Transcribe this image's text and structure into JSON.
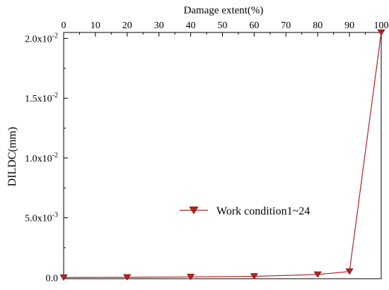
{
  "chart_data": {
    "type": "line",
    "title": "",
    "xlabel": "Damage extent(%)",
    "ylabel": "DILDC(mm)",
    "x_ticks": [
      0,
      10,
      20,
      30,
      40,
      50,
      60,
      70,
      80,
      90,
      100
    ],
    "y_ticks": [
      {
        "value": 0,
        "label": "0.0"
      },
      {
        "value": 0.005,
        "label": "5.0x10",
        "exp": "-3"
      },
      {
        "value": 0.01,
        "label": "1.0x10",
        "exp": "-2"
      },
      {
        "value": 0.015,
        "label": "1.5x10",
        "exp": "-2"
      },
      {
        "value": 0.02,
        "label": "2.0x10",
        "exp": "-2"
      }
    ],
    "xlim": [
      0,
      100
    ],
    "ylim": [
      -0.0001,
      0.0205
    ],
    "grid": false,
    "legend_position": "center-right",
    "series": [
      {
        "name": "Work condition1~24",
        "color": "#b22222",
        "marker": "triangle-down",
        "x": [
          0,
          20,
          40,
          60,
          80,
          90,
          100
        ],
        "y": [
          0,
          2e-05,
          5e-05,
          0.0001,
          0.00025,
          0.0005,
          0.0205
        ]
      }
    ]
  }
}
